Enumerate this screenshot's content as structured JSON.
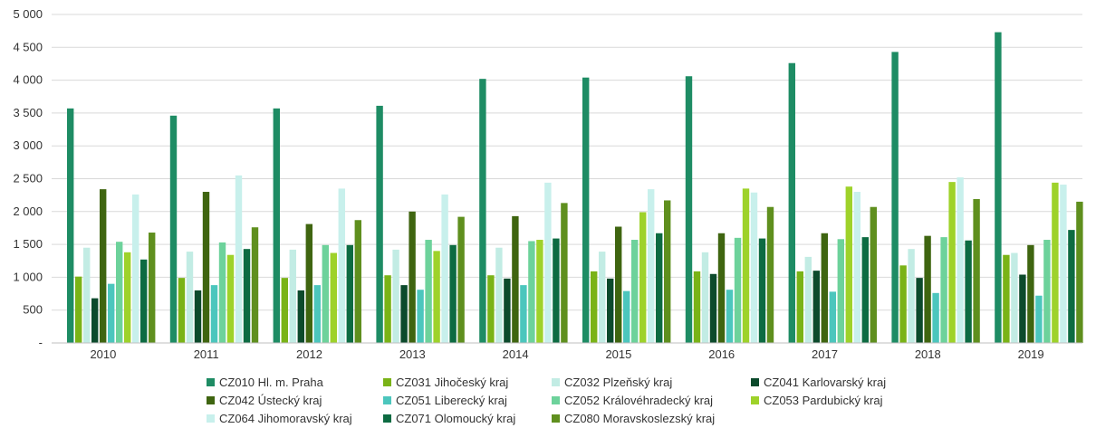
{
  "chart_data": {
    "type": "bar",
    "title": "",
    "xlabel": "",
    "ylabel": "",
    "ylim": [
      0,
      5000
    ],
    "y_ticks": [
      {
        "value": 0,
        "label": "-"
      },
      {
        "value": 500,
        "label": "500"
      },
      {
        "value": 1000,
        "label": "1 000"
      },
      {
        "value": 1500,
        "label": "1 500"
      },
      {
        "value": 2000,
        "label": "2 000"
      },
      {
        "value": 2500,
        "label": "2 500"
      },
      {
        "value": 3000,
        "label": "3 000"
      },
      {
        "value": 3500,
        "label": "3 500"
      },
      {
        "value": 4000,
        "label": "4 000"
      },
      {
        "value": 4500,
        "label": "4 500"
      },
      {
        "value": 5000,
        "label": "5 000"
      }
    ],
    "grid": true,
    "legend_position": "bottom",
    "categories": [
      "2010",
      "2011",
      "2012",
      "2013",
      "2014",
      "2015",
      "2016",
      "2017",
      "2018",
      "2019"
    ],
    "series": [
      {
        "name": "CZ010 Hl. m. Praha",
        "color": "#1e8c64",
        "values": [
          3570,
          3460,
          3570,
          3610,
          4020,
          4040,
          4060,
          4260,
          4430,
          4730
        ]
      },
      {
        "name": "CZ031 Jihočeský kraj",
        "color": "#7ab317",
        "values": [
          1010,
          990,
          990,
          1030,
          1030,
          1090,
          1090,
          1090,
          1180,
          1340
        ]
      },
      {
        "name": "CZ032 Plzeňský kraj",
        "color": "#c2ece4",
        "values": [
          1450,
          1390,
          1420,
          1420,
          1450,
          1390,
          1380,
          1310,
          1430,
          1370
        ]
      },
      {
        "name": "CZ041 Karlovarský kraj",
        "color": "#0c4a2c",
        "values": [
          680,
          800,
          800,
          880,
          980,
          980,
          1050,
          1100,
          990,
          1040
        ]
      },
      {
        "name": "CZ042 Ústecký kraj",
        "color": "#3f6510",
        "values": [
          2340,
          2300,
          1810,
          2000,
          1930,
          1770,
          1670,
          1670,
          1630,
          1490
        ]
      },
      {
        "name": "CZ051 Liberecký kraj",
        "color": "#4cc6bd",
        "values": [
          900,
          880,
          880,
          810,
          880,
          790,
          810,
          780,
          760,
          720
        ]
      },
      {
        "name": "CZ052 Královéhradecký kraj",
        "color": "#6dd29b",
        "values": [
          1540,
          1530,
          1490,
          1570,
          1550,
          1570,
          1600,
          1580,
          1610,
          1570
        ]
      },
      {
        "name": "CZ053 Pardubický kraj",
        "color": "#9ed22a",
        "values": [
          1380,
          1340,
          1370,
          1400,
          1570,
          1990,
          2350,
          2380,
          2450,
          2440
        ]
      },
      {
        "name": "CZ064 Jihomoravský kraj",
        "color": "#c8f0ec",
        "values": [
          2260,
          2550,
          2350,
          2260,
          2440,
          2340,
          2290,
          2300,
          2520,
          2410
        ]
      },
      {
        "name": "CZ071 Olomoucký kraj",
        "color": "#0d6b42",
        "values": [
          1270,
          1430,
          1490,
          1490,
          1590,
          1670,
          1590,
          1610,
          1560,
          1720
        ]
      },
      {
        "name": "CZ080 Moravskoslezský kraj",
        "color": "#5f8f1e",
        "values": [
          1680,
          1760,
          1870,
          1920,
          2130,
          2170,
          2070,
          2070,
          2190,
          2150
        ]
      }
    ]
  }
}
